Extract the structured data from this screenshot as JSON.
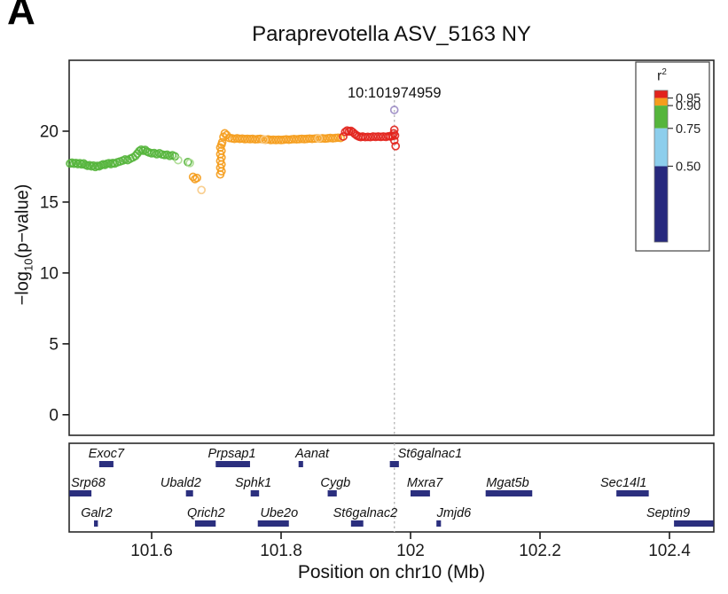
{
  "panel_label": "A",
  "title": "Paraprevotella ASV_5163 NY",
  "snp_label": "10:101974959",
  "axes": {
    "y_label_prefix": "−log",
    "y_label_sub": "10",
    "y_label_suffix": "(p−value)",
    "x_label": "Position on chr10 (Mb)",
    "y_ticks": [
      "0",
      "5",
      "10",
      "15",
      "20"
    ],
    "x_ticks": [
      "101.6",
      "101.8",
      "102",
      "102.2",
      "102.4"
    ]
  },
  "legend": {
    "title_base": "r",
    "title_sup": "2",
    "tick_labels": [
      "0.95",
      "0.90",
      "0.75",
      "0.50"
    ],
    "tick_values": [
      0.95,
      0.9,
      0.75,
      0.5
    ],
    "segments": [
      {
        "from": 0.95,
        "to": 1.0,
        "color": "#E2231C"
      },
      {
        "from": 0.9,
        "to": 0.95,
        "color": "#F59D1D"
      },
      {
        "from": 0.75,
        "to": 0.9,
        "color": "#55B53C"
      },
      {
        "from": 0.5,
        "to": 0.75,
        "color": "#8DCEEC"
      },
      {
        "from": 0.0,
        "to": 0.5,
        "color": "#27297D"
      }
    ]
  },
  "colors": {
    "panel_border": "#2a2a2a",
    "tick_text": "#1a1a1a",
    "gene_bar": "#2B2F7E",
    "dashed_line": "#b5b5b5",
    "lead_point": "#9B8BC4"
  },
  "chart_data": {
    "type": "scatter",
    "title": "Paraprevotella ASV_5163 NY",
    "xlabel": "Position on chr10 (Mb)",
    "ylabel": "−log10(p−value)",
    "xlim": [
      101.4726,
      102.4685
    ],
    "ylim": [
      -1.45,
      25.0
    ],
    "x_tick_values": [
      101.6,
      101.8,
      102.0,
      102.2,
      102.4
    ],
    "y_tick_values": [
      0,
      5,
      10,
      15,
      20
    ],
    "grid": false,
    "legend_position": "top-right",
    "lead_snp": {
      "label": "10:101974959",
      "x": 101.975,
      "y": 21.5
    },
    "series": [
      {
        "name": "r2 0.75-0.90 (green)",
        "color": "#55B53C",
        "points": [
          [
            101.474,
            17.72
          ],
          [
            101.477,
            17.78
          ],
          [
            101.48,
            17.7
          ],
          [
            101.483,
            17.76
          ],
          [
            101.486,
            17.68
          ],
          [
            101.489,
            17.74
          ],
          [
            101.492,
            17.66
          ],
          [
            101.495,
            17.72
          ],
          [
            101.498,
            17.62
          ],
          [
            101.501,
            17.56
          ],
          [
            101.504,
            17.6
          ],
          [
            101.507,
            17.52
          ],
          [
            101.51,
            17.58
          ],
          [
            101.513,
            17.48
          ],
          [
            101.516,
            17.55
          ],
          [
            101.519,
            17.52
          ],
          [
            101.522,
            17.6
          ],
          [
            101.525,
            17.66
          ],
          [
            101.528,
            17.62
          ],
          [
            101.531,
            17.7
          ],
          [
            101.534,
            17.74
          ],
          [
            101.537,
            17.68
          ],
          [
            101.54,
            17.76
          ],
          [
            101.543,
            17.72
          ],
          [
            101.547,
            17.8
          ],
          [
            101.551,
            17.86
          ],
          [
            101.555,
            17.92
          ],
          [
            101.559,
            18.0
          ],
          [
            101.563,
            17.96
          ],
          [
            101.567,
            18.06
          ],
          [
            101.571,
            18.14
          ],
          [
            101.575,
            18.26
          ],
          [
            101.578,
            18.42
          ],
          [
            101.581,
            18.6
          ],
          [
            101.584,
            18.7
          ],
          [
            101.587,
            18.62
          ],
          [
            101.59,
            18.68
          ],
          [
            101.593,
            18.56
          ],
          [
            101.596,
            18.5
          ],
          [
            101.6,
            18.44
          ],
          [
            101.604,
            18.46
          ],
          [
            101.608,
            18.38
          ],
          [
            101.612,
            18.44
          ],
          [
            101.616,
            18.36
          ],
          [
            101.62,
            18.32
          ],
          [
            101.624,
            18.34
          ],
          [
            101.628,
            18.26
          ],
          [
            101.632,
            18.3
          ],
          [
            101.636,
            18.22
          ],
          [
            101.656,
            17.82
          ]
        ]
      },
      {
        "name": "r2 0.75-0.90 (green, faded)",
        "color": "#A8DA8E",
        "points": [
          [
            101.641,
            17.96
          ],
          [
            101.659,
            17.76
          ]
        ]
      },
      {
        "name": "r2 0.90-0.95 (orange)",
        "color": "#F59D1D",
        "points": [
          [
            101.664,
            16.78
          ],
          [
            101.667,
            16.62
          ],
          [
            101.67,
            16.7
          ],
          [
            101.706,
            16.95
          ],
          [
            101.708,
            17.18
          ],
          [
            101.706,
            17.42
          ],
          [
            101.708,
            17.66
          ],
          [
            101.706,
            17.9
          ],
          [
            101.708,
            18.14
          ],
          [
            101.706,
            18.38
          ],
          [
            101.708,
            18.62
          ],
          [
            101.706,
            18.85
          ],
          [
            101.708,
            19.05
          ],
          [
            101.709,
            19.22
          ],
          [
            101.711,
            19.6
          ],
          [
            101.713,
            19.85
          ],
          [
            101.716,
            19.72
          ],
          [
            101.72,
            19.52
          ],
          [
            101.724,
            19.5
          ],
          [
            101.728,
            19.46
          ],
          [
            101.732,
            19.5
          ],
          [
            101.736,
            19.46
          ],
          [
            101.74,
            19.48
          ],
          [
            101.744,
            19.44
          ],
          [
            101.748,
            19.46
          ],
          [
            101.752,
            19.44
          ],
          [
            101.756,
            19.46
          ],
          [
            101.76,
            19.42
          ],
          [
            101.764,
            19.44
          ],
          [
            101.768,
            19.46
          ],
          [
            101.772,
            19.42
          ],
          [
            101.776,
            19.4
          ],
          [
            101.78,
            19.42
          ],
          [
            101.784,
            19.38
          ],
          [
            101.788,
            19.4
          ],
          [
            101.792,
            19.38
          ],
          [
            101.796,
            19.4
          ],
          [
            101.8,
            19.38
          ],
          [
            101.804,
            19.4
          ],
          [
            101.808,
            19.42
          ],
          [
            101.812,
            19.4
          ],
          [
            101.816,
            19.42
          ],
          [
            101.82,
            19.44
          ],
          [
            101.824,
            19.42
          ],
          [
            101.828,
            19.44
          ],
          [
            101.832,
            19.46
          ],
          [
            101.836,
            19.44
          ],
          [
            101.84,
            19.46
          ],
          [
            101.844,
            19.48
          ],
          [
            101.848,
            19.46
          ],
          [
            101.852,
            19.48
          ],
          [
            101.856,
            19.5
          ],
          [
            101.86,
            19.48
          ],
          [
            101.864,
            19.5
          ],
          [
            101.868,
            19.48
          ],
          [
            101.872,
            19.5
          ],
          [
            101.876,
            19.52
          ],
          [
            101.88,
            19.5
          ],
          [
            101.884,
            19.52
          ],
          [
            101.888,
            19.54
          ],
          [
            101.892,
            19.52
          ]
        ]
      },
      {
        "name": "r2 0.90-0.95 (orange, faded)",
        "color": "#F8CA85",
        "points": [
          [
            101.677,
            15.85
          ],
          [
            101.774,
            19.4
          ],
          [
            101.858,
            19.5
          ]
        ]
      },
      {
        "name": "r2 >0.95 (red)",
        "color": "#E2231C",
        "points": [
          [
            101.896,
            19.62
          ],
          [
            101.899,
            19.95
          ],
          [
            101.902,
            20.05
          ],
          [
            101.905,
            19.98
          ],
          [
            101.908,
            20.02
          ],
          [
            101.911,
            19.92
          ],
          [
            101.914,
            19.8
          ],
          [
            101.917,
            19.7
          ],
          [
            101.92,
            19.62
          ],
          [
            101.923,
            19.58
          ],
          [
            101.926,
            19.62
          ],
          [
            101.93,
            19.58
          ],
          [
            101.934,
            19.6
          ],
          [
            101.938,
            19.58
          ],
          [
            101.942,
            19.62
          ],
          [
            101.946,
            19.6
          ],
          [
            101.95,
            19.62
          ],
          [
            101.954,
            19.6
          ],
          [
            101.958,
            19.62
          ],
          [
            101.962,
            19.6
          ],
          [
            101.966,
            19.64
          ],
          [
            101.969,
            19.62
          ],
          [
            101.972,
            19.66
          ],
          [
            101.974,
            19.85
          ],
          [
            101.975,
            20.1
          ],
          [
            101.976,
            19.7
          ],
          [
            101.975,
            19.35
          ],
          [
            101.977,
            18.95
          ]
        ]
      },
      {
        "name": "lead SNP (purple)",
        "color": "#9B8BC4",
        "points": [
          [
            101.975,
            21.5
          ]
        ]
      }
    ],
    "genes": [
      {
        "name": "Exoc7",
        "row": 1,
        "start": 101.519,
        "end": 101.541,
        "label_mb": 101.53
      },
      {
        "name": "Prpsap1",
        "row": 1,
        "start": 101.699,
        "end": 101.752,
        "label_mb": 101.724
      },
      {
        "name": "Aanat",
        "row": 1,
        "start": 101.827,
        "end": 101.834,
        "label_mb": 101.848
      },
      {
        "name": "St6galnac1",
        "row": 1,
        "start": 101.968,
        "end": 101.982,
        "label_mb": 102.03
      },
      {
        "name": "Srp68",
        "row": 2,
        "start": 101.473,
        "end": 101.507,
        "label_mb": 101.502
      },
      {
        "name": "Ubald2",
        "row": 2,
        "start": 101.653,
        "end": 101.664,
        "label_mb": 101.645
      },
      {
        "name": "Sphk1",
        "row": 2,
        "start": 101.753,
        "end": 101.766,
        "label_mb": 101.757
      },
      {
        "name": "Cygb",
        "row": 2,
        "start": 101.872,
        "end": 101.886,
        "label_mb": 101.884
      },
      {
        "name": "Mxra7",
        "row": 2,
        "start": 102.0,
        "end": 102.03,
        "label_mb": 102.022
      },
      {
        "name": "Mgat5b",
        "row": 2,
        "start": 102.116,
        "end": 102.188,
        "label_mb": 102.15
      },
      {
        "name": "Sec14l1",
        "row": 2,
        "start": 102.318,
        "end": 102.368,
        "label_mb": 102.329
      },
      {
        "name": "Galr2",
        "row": 3,
        "start": 101.511,
        "end": 101.517,
        "label_mb": 101.515
      },
      {
        "name": "Qrich2",
        "row": 3,
        "start": 101.667,
        "end": 101.699,
        "label_mb": 101.684
      },
      {
        "name": "Ube2o",
        "row": 3,
        "start": 101.764,
        "end": 101.812,
        "label_mb": 101.797
      },
      {
        "name": "St6galnac2",
        "row": 3,
        "start": 101.908,
        "end": 101.927,
        "label_mb": 101.93
      },
      {
        "name": "Jmjd6",
        "row": 3,
        "start": 102.04,
        "end": 102.047,
        "label_mb": 102.067
      },
      {
        "name": "Septin9",
        "row": 3,
        "start": 102.407,
        "end": 102.468,
        "label_mb": 102.398
      }
    ]
  }
}
